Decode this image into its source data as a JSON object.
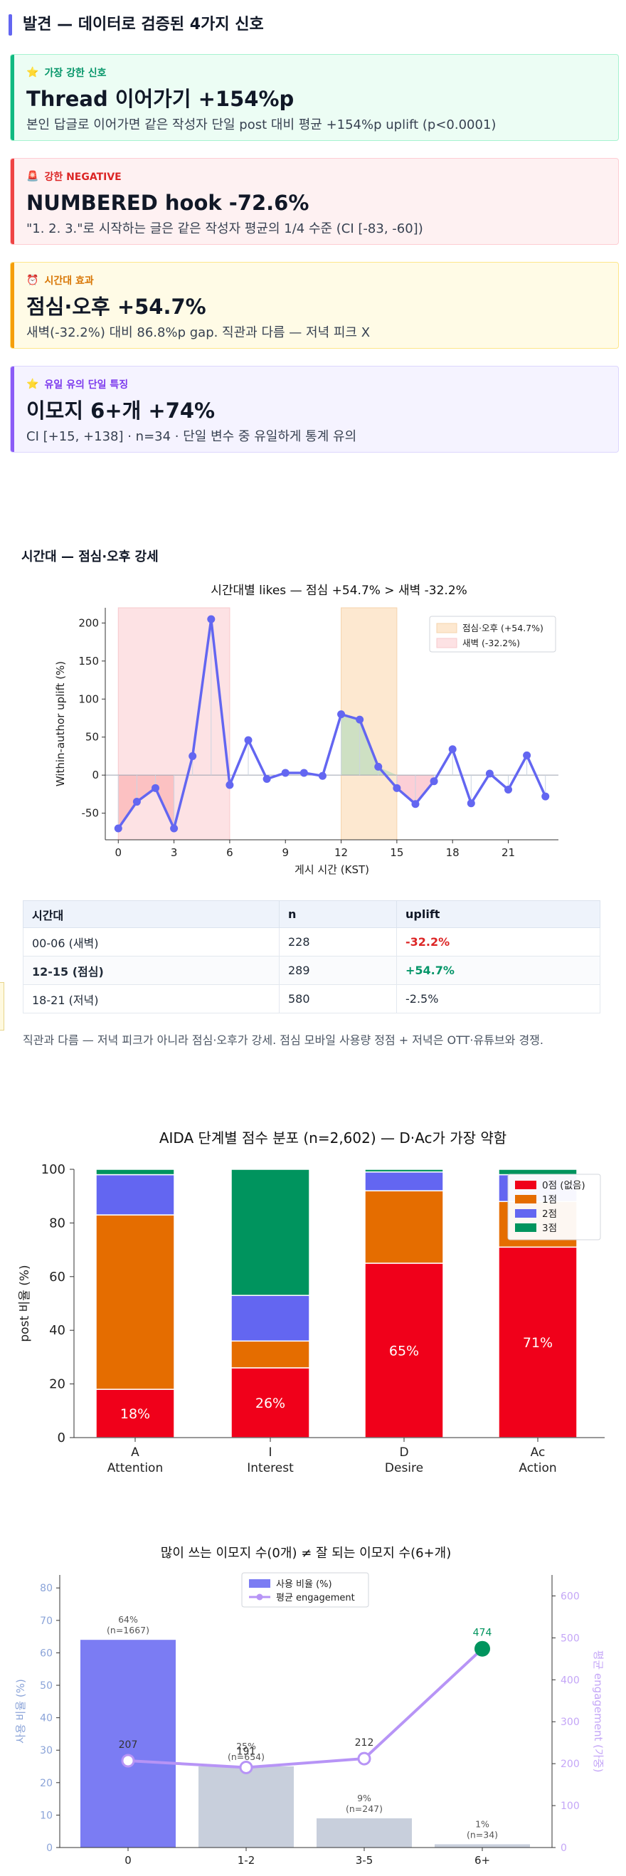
{
  "findings": {
    "title": "발견 — 데이터로 검증된 4가지 신호",
    "cards": [
      {
        "tag": "가장 강한 신호",
        "icon": "star-icon",
        "headline": "Thread 이어가기 +154%p",
        "desc": "본인 답글로 이어가면 같은 작성자 단일 post 대비 평균 +154%p uplift (p<0.0001)",
        "accent": "#10b981",
        "bg": "#ecfdf4",
        "border": "#a7f3d0",
        "tag_color": "#059669"
      },
      {
        "tag": "강한 NEGATIVE",
        "icon": "warning-icon",
        "headline": "NUMBERED hook -72.6%",
        "desc": "\"1. 2. 3.\"로 시작하는 글은 같은 작성자 평균의 1/4 수준 (CI [-83, -60])",
        "accent": "#ef4444",
        "bg": "#fef1f2",
        "border": "#fecdd3",
        "tag_color": "#dc2626"
      },
      {
        "tag": "시간대 효과",
        "icon": "clock-icon",
        "headline": "점심·오후 +54.7%",
        "desc": "새벽(-32.2%) 대비 86.8%p gap. 직관과 다름 — 저녁 피크 X",
        "accent": "#f59e0b",
        "bg": "#fffbe6",
        "border": "#fde68a",
        "tag_color": "#d97706"
      },
      {
        "tag": "유일 유의 단일 특징",
        "icon": "star-icon",
        "headline": "이모지 6+개 +74%",
        "desc": "CI [+15, +138] · n=34 · 단일 변수 중 유일하게 통계 유의",
        "accent": "#8b5cf6",
        "bg": "#f5f3ff",
        "border": "#ddd6fe",
        "tag_color": "#7c3aed"
      }
    ]
  },
  "timezone": {
    "subtitle": "시간대 — 점심·오후 강세",
    "table": {
      "headers": [
        "시간대",
        "n",
        "uplift"
      ],
      "rows": [
        {
          "slot": "00-06 (새벽)",
          "n": "228",
          "uplift": "-32.2%",
          "color": "#dc2626",
          "bold": false
        },
        {
          "slot": "12-15 (점심)",
          "n": "289",
          "uplift": "+54.7%",
          "color": "#059669",
          "bold": true
        },
        {
          "slot": "18-21 (저녁)",
          "n": "580",
          "uplift": "-2.5%",
          "color": "#1f2937",
          "bold": false
        }
      ]
    },
    "note": "직관과 다름 — 저녁 피크가 아니라 점심·오후가 강세. 점심 모바일 사용량 정점 + 저녁은 OTT·유튜브와 경쟁."
  },
  "chart_data": [
    {
      "type": "line",
      "title": "시간대별 likes — 점심 +54.7% > 새벽 -32.2%",
      "xlabel": "게시 시간 (KST)",
      "ylabel": "Within-author uplift (%)",
      "x": [
        0,
        1,
        2,
        3,
        4,
        5,
        6,
        7,
        8,
        9,
        10,
        11,
        12,
        13,
        14,
        15,
        16,
        17,
        18,
        19,
        20,
        21,
        22,
        23
      ],
      "values": [
        -70,
        -35,
        -17,
        -70,
        25,
        205,
        -13,
        46,
        -5,
        3,
        3,
        -1,
        80,
        73,
        11,
        -17,
        -38,
        -8,
        34,
        -37,
        2,
        -19,
        26,
        -28
      ],
      "xticks": [
        0,
        3,
        6,
        9,
        12,
        15,
        18,
        21
      ],
      "yticks": [
        -50,
        0,
        50,
        100,
        150,
        200
      ],
      "ylim": [
        -85,
        220
      ],
      "xlim": [
        -0.7,
        23.7
      ],
      "spans": [
        {
          "from": 0,
          "to": 6,
          "label": "새벽 (-32.2%)",
          "color": "#fde2e4"
        },
        {
          "from": 12,
          "to": 15,
          "label": "점심·오후 (+54.7%)",
          "color": "#fde8d0"
        }
      ],
      "legend": [
        "점심·오후 (+54.7%)",
        "새벽 (-32.2%)"
      ],
      "legend_position": "top-right",
      "line_color": "#6366f1"
    },
    {
      "type": "bar",
      "stacked": true,
      "title": "AIDA 단계별 점수 분포 (n=2,602) — D·Ac가 가장 약함",
      "ylabel": "post 비율 (%)",
      "categories": [
        "A\nAttention",
        "I\nInterest",
        "D\nDesire",
        "Ac\nAction"
      ],
      "ylim": [
        0,
        100
      ],
      "yticks": [
        0,
        20,
        40,
        60,
        80,
        100
      ],
      "series": [
        {
          "name": "0점 (없음)",
          "color": "#f0001a",
          "values": [
            18,
            26,
            65,
            71
          ]
        },
        {
          "name": "1점",
          "color": "#e56d00",
          "values": [
            65,
            10,
            27,
            17
          ]
        },
        {
          "name": "2점",
          "color": "#6366f1",
          "values": [
            15,
            17,
            7,
            10
          ]
        },
        {
          "name": "3점",
          "color": "#00945e",
          "values": [
            2,
            47,
            1,
            2
          ]
        }
      ],
      "data_labels": [
        "18%",
        "26%",
        "65%",
        "71%"
      ],
      "legend_position": "top-right"
    },
    {
      "type": "bar",
      "title": "많이 쓰는 이모지 수(0개) ≠ 잘 되는 이모지 수(6+개)",
      "categories": [
        "0",
        "1-2",
        "3-5",
        "6+"
      ],
      "ylabel": "사용 비율 (%)",
      "y2label": "평균 engagement (가중)",
      "ylim": [
        0,
        84
      ],
      "y2lim": [
        0,
        650
      ],
      "yticks": [
        0,
        10,
        20,
        30,
        40,
        50,
        60,
        70,
        80
      ],
      "y2ticks": [
        0,
        100,
        200,
        300,
        400,
        500,
        600
      ],
      "series": [
        {
          "name": "사용 비율 (%)",
          "type": "bar",
          "values": [
            64,
            25,
            9,
            1
          ],
          "labels": [
            "64%\n(n=1667)",
            "25%\n(n=654)",
            "9%\n(n=247)",
            "1%\n(n=34)"
          ]
        },
        {
          "name": "평균 engagement",
          "type": "line",
          "values": [
            207,
            191,
            212,
            474
          ]
        }
      ],
      "legend_position": "top-center",
      "bar_color_main": "#7b7cf3",
      "bar_color_rest": "#c8cfdc",
      "line_color": "#b794f6",
      "highlight_color": "#00945e"
    }
  ]
}
